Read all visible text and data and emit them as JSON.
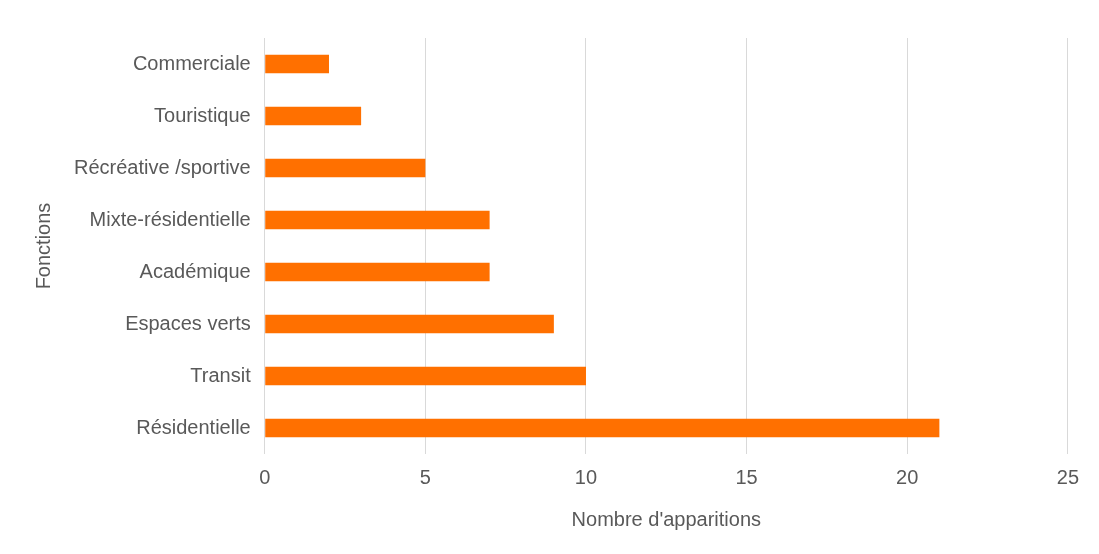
{
  "chart_data": {
    "type": "bar",
    "orientation": "horizontal",
    "xlabel": "Nombre d'apparitions",
    "ylabel": "Fonctions",
    "categories": [
      "Commerciale",
      "Touristique",
      "Récréative /sportive",
      "Mixte-résidentielle",
      "Académique",
      "Espaces verts",
      "Transit",
      "Résidentielle"
    ],
    "values": [
      2,
      3,
      5,
      7,
      7,
      9,
      10,
      21
    ],
    "color": "#ff7000",
    "xlim": [
      0,
      25
    ],
    "xticks": [
      0,
      5,
      10,
      15,
      20,
      25
    ],
    "grid": "x",
    "legend": false
  }
}
